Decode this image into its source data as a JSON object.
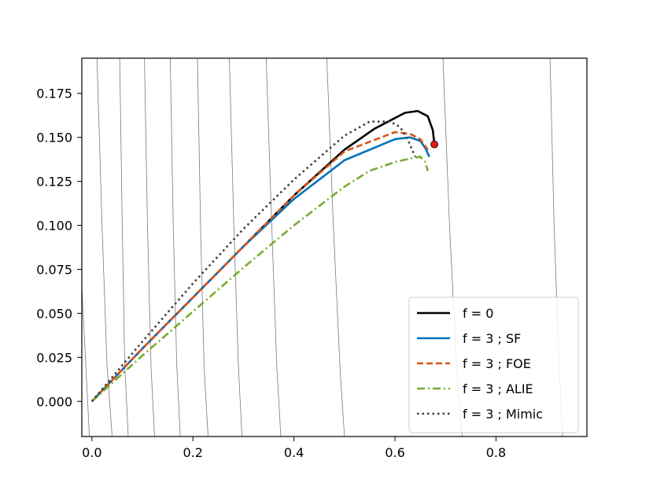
{
  "chart_data": {
    "type": "line",
    "title": "",
    "xlabel": "",
    "ylabel": "",
    "xlim": [
      -0.02,
      0.98
    ],
    "ylim": [
      -0.02,
      0.195
    ],
    "grid": false,
    "legend_position": "lower-right",
    "x_ticks": [
      "0.0",
      "0.2",
      "0.4",
      "0.6",
      "0.8"
    ],
    "y_ticks": [
      "0.000",
      "0.025",
      "0.050",
      "0.075",
      "0.100",
      "0.125",
      "0.150",
      "0.175"
    ],
    "x_tick_values": [
      0.0,
      0.2,
      0.4,
      0.6,
      0.8
    ],
    "y_tick_values": [
      0.0,
      0.025,
      0.05,
      0.075,
      0.1,
      0.125,
      0.15,
      0.175
    ],
    "contours": [
      [
        [
          0.01,
          0.195
        ],
        [
          0.02,
          0.1
        ],
        [
          0.03,
          0.02
        ],
        [
          0.04,
          -0.02
        ]
      ],
      [
        [
          0.055,
          0.195
        ],
        [
          0.06,
          0.1
        ],
        [
          0.065,
          0.02
        ],
        [
          0.072,
          -0.02
        ]
      ],
      [
        [
          0.104,
          0.195
        ],
        [
          0.11,
          0.1
        ],
        [
          0.117,
          0.02
        ],
        [
          0.124,
          -0.02
        ]
      ],
      [
        [
          0.155,
          0.195
        ],
        [
          0.161,
          0.1
        ],
        [
          0.168,
          0.02
        ],
        [
          0.175,
          -0.02
        ]
      ],
      [
        [
          0.209,
          0.195
        ],
        [
          0.215,
          0.1
        ],
        [
          0.222,
          0.02
        ],
        [
          0.23,
          -0.02
        ]
      ],
      [
        [
          0.272,
          0.195
        ],
        [
          0.281,
          0.1
        ],
        [
          0.29,
          0.02
        ],
        [
          0.297,
          -0.02
        ]
      ],
      [
        [
          0.345,
          0.195
        ],
        [
          0.356,
          0.1
        ],
        [
          0.366,
          0.02
        ],
        [
          0.374,
          -0.02
        ]
      ],
      [
        [
          0.465,
          0.195
        ],
        [
          0.478,
          0.1
        ],
        [
          0.491,
          0.02
        ],
        [
          0.5,
          -0.02
        ]
      ],
      [
        [
          0.695,
          0.195
        ],
        [
          0.708,
          0.1
        ],
        [
          0.722,
          0.02
        ],
        [
          0.733,
          -0.02
        ]
      ],
      [
        [
          0.907,
          0.195
        ],
        [
          0.915,
          0.1
        ],
        [
          0.925,
          0.02
        ],
        [
          0.932,
          -0.02
        ]
      ],
      [
        [
          -0.02,
          0.065
        ],
        [
          -0.012,
          0.02
        ],
        [
          -0.005,
          -0.02
        ]
      ]
    ],
    "end_marker": {
      "x": 0.678,
      "y": 0.146,
      "color": "#e8161b"
    },
    "series": [
      {
        "name": "f = 0",
        "color": "#000000",
        "dash": "solid",
        "x": [
          0.0,
          0.1,
          0.2,
          0.3,
          0.4,
          0.5,
          0.56,
          0.6,
          0.62,
          0.645,
          0.665,
          0.675,
          0.678
        ],
        "y": [
          0.0,
          0.03,
          0.059,
          0.088,
          0.117,
          0.143,
          0.155,
          0.161,
          0.164,
          0.165,
          0.162,
          0.154,
          0.146
        ]
      },
      {
        "name": "f = 3 ; SF",
        "color": "#0072bd",
        "dash": "solid",
        "x": [
          0.0,
          0.1,
          0.2,
          0.3,
          0.4,
          0.5,
          0.6,
          0.63,
          0.65,
          0.66,
          0.668
        ],
        "y": [
          0.0,
          0.03,
          0.059,
          0.088,
          0.115,
          0.137,
          0.149,
          0.15,
          0.148,
          0.144,
          0.139
        ]
      },
      {
        "name": "f = 3 ; FOE",
        "color": "#d95319",
        "dash": "dashed",
        "x": [
          0.0,
          0.1,
          0.2,
          0.3,
          0.4,
          0.5,
          0.6,
          0.63,
          0.65,
          0.665
        ],
        "y": [
          0.0,
          0.03,
          0.059,
          0.088,
          0.117,
          0.142,
          0.153,
          0.152,
          0.149,
          0.143
        ]
      },
      {
        "name": "f = 3 ; ALIE",
        "color": "#77ac30",
        "dash": "dashdot",
        "x": [
          0.0,
          0.1,
          0.2,
          0.3,
          0.4,
          0.5,
          0.55,
          0.6,
          0.63,
          0.65,
          0.66,
          0.665
        ],
        "y": [
          0.0,
          0.026,
          0.051,
          0.076,
          0.1,
          0.122,
          0.131,
          0.136,
          0.138,
          0.139,
          0.136,
          0.131
        ]
      },
      {
        "name": "f = 3 ; Mimic",
        "color": "#404040",
        "dash": "dotted",
        "x": [
          0.0,
          0.1,
          0.2,
          0.3,
          0.4,
          0.5,
          0.55,
          0.59,
          0.61,
          0.625,
          0.64
        ],
        "y": [
          0.0,
          0.034,
          0.067,
          0.098,
          0.126,
          0.151,
          0.159,
          0.159,
          0.156,
          0.149,
          0.139
        ]
      }
    ]
  }
}
